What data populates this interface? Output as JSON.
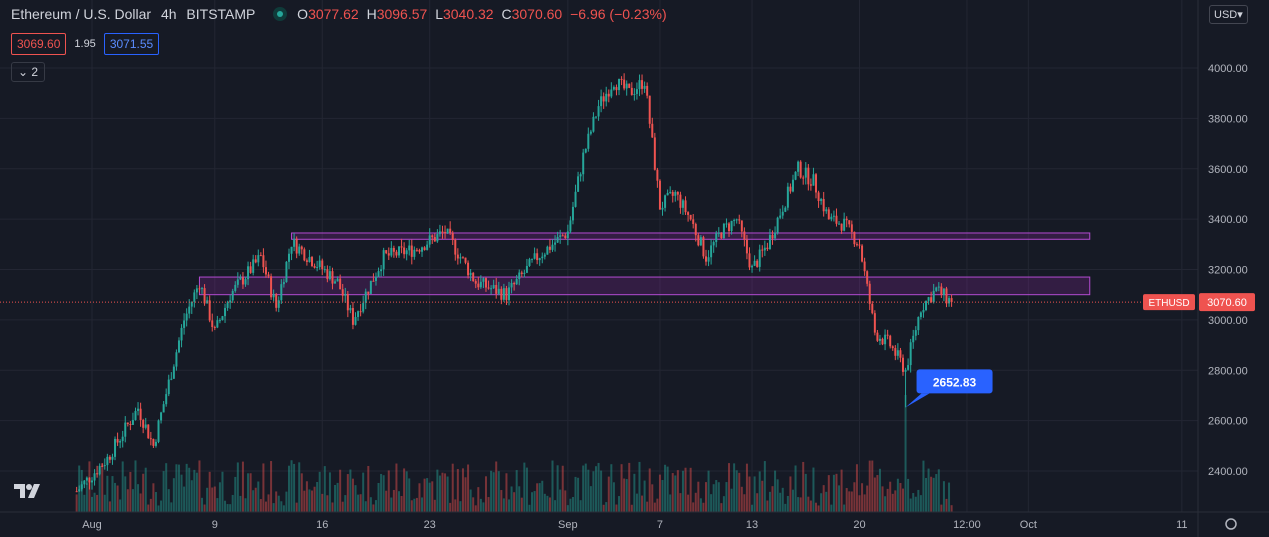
{
  "header": {
    "symbol_title": "Ethereum / U.S. Dollar",
    "interval": "4h",
    "exchange": "BITSTAMP",
    "o_label": "O",
    "o_value": "3077.62",
    "h_label": "H",
    "h_value": "3096.57",
    "l_label": "L",
    "l_value": "3040.32",
    "c_label": "C",
    "c_value": "3070.60",
    "change": "−6.96 (−0.23%)"
  },
  "bid_ask": {
    "bid": "3069.60",
    "spread": "1.95",
    "ask": "3071.55"
  },
  "collapse_label": "2",
  "currency_label": "USD",
  "colors": {
    "background": "#161a25",
    "up": "#26a69a",
    "down": "#ef5350",
    "zone": "#9c27b0",
    "tag": "#2962ff"
  },
  "chart_data": {
    "type": "candlestick",
    "title": "Ethereum / U.S. Dollar",
    "ylim": [
      2280,
      4180
    ],
    "y_ticks": [
      "4000.00",
      "3800.00",
      "3600.00",
      "3400.00",
      "3200.00",
      "3000.00",
      "2800.00",
      "2600.00",
      "2400.00"
    ],
    "x_ticks": [
      "Aug",
      "9",
      "16",
      "23",
      "Sep",
      "7",
      "13",
      "20",
      "12:00",
      "Oct",
      "11"
    ],
    "price_keypoints": [
      [
        "2021-07-31",
        2320
      ],
      [
        "2021-08-02",
        2450
      ],
      [
        "2021-08-04",
        2650
      ],
      [
        "2021-08-05",
        2500
      ],
      [
        "2021-08-07",
        3000
      ],
      [
        "2021-08-08",
        3150
      ],
      [
        "2021-08-09",
        2950
      ],
      [
        "2021-08-10",
        3100
      ],
      [
        "2021-08-12",
        3250
      ],
      [
        "2021-08-13",
        3050
      ],
      [
        "2021-08-14",
        3310
      ],
      [
        "2021-08-17",
        3150
      ],
      [
        "2021-08-18",
        3000
      ],
      [
        "2021-08-20",
        3250
      ],
      [
        "2021-08-22",
        3280
      ],
      [
        "2021-08-24",
        3350
      ],
      [
        "2021-08-26",
        3150
      ],
      [
        "2021-08-28",
        3100
      ],
      [
        "2021-08-30",
        3250
      ],
      [
        "2021-09-01",
        3350
      ],
      [
        "2021-09-02",
        3650
      ],
      [
        "2021-09-03",
        3850
      ],
      [
        "2021-09-04",
        3950
      ],
      [
        "2021-09-05",
        3900
      ],
      [
        "2021-09-06",
        3950
      ],
      [
        "2021-09-07",
        3450
      ],
      [
        "2021-09-08",
        3500
      ],
      [
        "2021-09-09",
        3400
      ],
      [
        "2021-09-10",
        3250
      ],
      [
        "2021-09-11",
        3350
      ],
      [
        "2021-09-12",
        3400
      ],
      [
        "2021-09-13",
        3200
      ],
      [
        "2021-09-14",
        3300
      ],
      [
        "2021-09-15",
        3450
      ],
      [
        "2021-09-16",
        3600
      ],
      [
        "2021-09-17",
        3550
      ],
      [
        "2021-09-18",
        3400
      ],
      [
        "2021-09-19",
        3380
      ],
      [
        "2021-09-20",
        3300
      ],
      [
        "2021-09-21",
        2950
      ],
      [
        "2021-09-22",
        2900
      ],
      [
        "2021-09-23",
        2800
      ],
      [
        "2021-09-24",
        3050
      ],
      [
        "2021-09-25",
        3120
      ],
      [
        "2021-09-26",
        3070
      ]
    ],
    "resistance_zones": [
      {
        "from": "2021-08-14",
        "to": "2021-10-05",
        "high": 3345,
        "low": 3320
      },
      {
        "from": "2021-08-08",
        "to": "2021-10-05",
        "high": 3170,
        "low": 3100
      }
    ],
    "last_price": 3070.6,
    "last_price_label": "3070.60",
    "symbol_tag": "ETHUSD",
    "low_marker": {
      "date": "2021-09-23",
      "value": 2652.83,
      "label": "2652.83"
    }
  }
}
